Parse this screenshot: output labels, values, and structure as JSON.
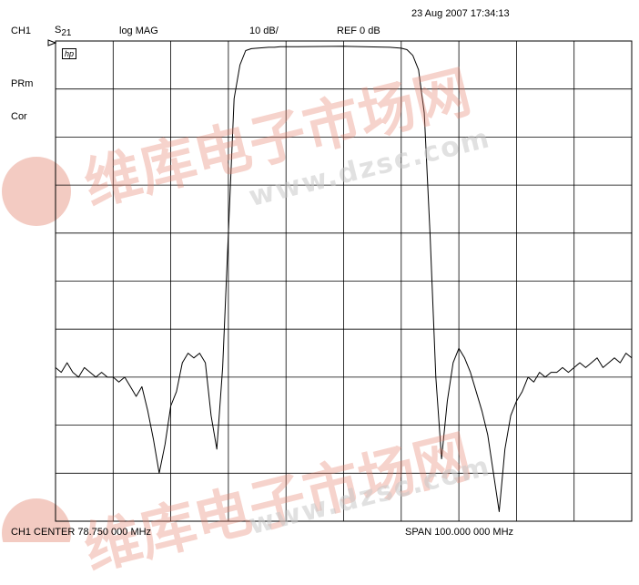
{
  "header": {
    "timestamp": "23 Aug 2007  17:34:13",
    "channel": "CH1",
    "param_main": "S",
    "param_sub": "21",
    "format": "log MAG",
    "scale": "10 dB/",
    "ref": "REF 0 dB"
  },
  "annotations": {
    "hp_logo": "hp",
    "prm": "PRm",
    "cor": "Cor"
  },
  "footer": {
    "center": "CH1 CENTER  78.750 000 MHz",
    "span": "SPAN  100.000 000 MHz"
  },
  "watermark": {
    "cn": "维库电子市场网",
    "url": "www.dzsc.com"
  },
  "colors": {
    "trace": "#000000",
    "grid": "#000000",
    "watermark": "#e8b4a8"
  },
  "chart_data": {
    "type": "line",
    "xlim": [
      28.75,
      128.75
    ],
    "ylim": [
      -100,
      0
    ],
    "x_divisions": 10,
    "y_divisions": 10,
    "grid": true,
    "series": [
      {
        "x": [
          28.75,
          29.75,
          30.75,
          31.75,
          32.75,
          33.75,
          34.75,
          35.75,
          36.75,
          37.75,
          38.75,
          39.75,
          40.75,
          41.75,
          42.75,
          43.75,
          44.75,
          45.75,
          46.75,
          47.75,
          48.75,
          49.75,
          50.75,
          51.75,
          52.75,
          53.75,
          54.75,
          55.75,
          56.75,
          57.75,
          58.75,
          59.75,
          60.75,
          61.75,
          62.75,
          63.75,
          64.75,
          65.75,
          66.75,
          67.75,
          68.75,
          69.75,
          70.75,
          78.75,
          86.75,
          88.75,
          89.75,
          90.75,
          91.75,
          92.75,
          93.75,
          94.75,
          95.75,
          96.75,
          97.75,
          98.75,
          99.75,
          100.75,
          101.75,
          102.75,
          103.75,
          104.75,
          105.75,
          106.75,
          107.75,
          108.75,
          109.75,
          110.75,
          111.75,
          112.75,
          113.75,
          114.75,
          115.75,
          116.75,
          117.75,
          118.75,
          119.75,
          120.75,
          121.75,
          122.75,
          123.75,
          124.75,
          125.75,
          126.75,
          127.75,
          128.75
        ],
        "y": [
          -68,
          -69,
          -67,
          -69,
          -70,
          -68,
          -69,
          -70,
          -69,
          -70,
          -70,
          -71,
          -70,
          -72,
          -74,
          -72,
          -77,
          -83,
          -90,
          -84,
          -76,
          -73,
          -67,
          -65,
          -66,
          -65,
          -67,
          -78,
          -85,
          -68,
          -40,
          -12,
          -5,
          -2,
          -1.6,
          -1.5,
          -1.4,
          -1.3,
          -1.3,
          -1.2,
          -1.2,
          -1.2,
          -1.2,
          -1.1,
          -1.3,
          -1.5,
          -1.8,
          -3,
          -6,
          -15,
          -40,
          -70,
          -87,
          -75,
          -67,
          -64,
          -66,
          -69,
          -73,
          -77,
          -82,
          -90,
          -98,
          -85,
          -78,
          -75,
          -73,
          -70,
          -71,
          -69,
          -70,
          -69,
          -69,
          -68,
          -69,
          -68,
          -67,
          -68,
          -67,
          -66,
          -68,
          -67,
          -66,
          -67,
          -65,
          -66
        ]
      }
    ]
  }
}
